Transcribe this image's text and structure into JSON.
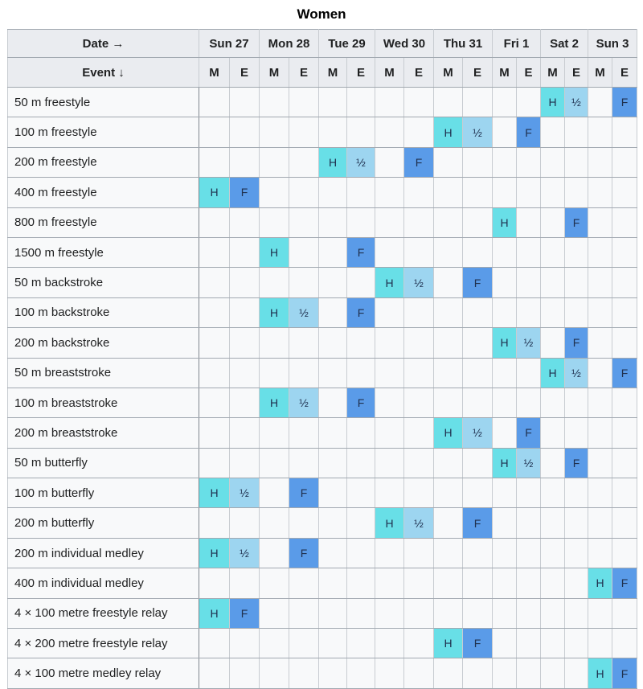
{
  "title": "Women",
  "table": {
    "date_label": "Date →",
    "event_label": "Event ↓",
    "days": [
      "Sun 27",
      "Mon 28",
      "Tue 29",
      "Wed 30",
      "Thu 31",
      "Fri 1",
      "Sat 2",
      "Sun 3"
    ],
    "sessions": [
      "M",
      "E"
    ],
    "marks": {
      "H": {
        "label": "H",
        "name": "heats",
        "bg": "#68dfe7"
      },
      "half": {
        "label": "½",
        "name": "semifinal",
        "bg": "#9dd5f0"
      },
      "F": {
        "label": "F",
        "name": "final",
        "bg": "#5a9be8"
      }
    },
    "colors": {
      "header_bg": "#eaecf0",
      "cell_bg": "#f8f9fa",
      "border": "#a2a9b1",
      "border_day": "#81878f",
      "border_light": "#c8ccd1",
      "text": "#202122",
      "mark_text": "#20314f"
    },
    "rows": [
      {
        "event": "50 m freestyle",
        "cells": [
          "",
          "",
          "",
          "",
          "",
          "",
          "",
          "",
          "",
          "",
          "",
          "",
          "H",
          "half",
          "",
          "F"
        ]
      },
      {
        "event": "100 m freestyle",
        "cells": [
          "",
          "",
          "",
          "",
          "",
          "",
          "",
          "",
          "H",
          "half",
          "",
          "F",
          "",
          "",
          "",
          ""
        ]
      },
      {
        "event": "200 m freestyle",
        "cells": [
          "",
          "",
          "",
          "",
          "H",
          "half",
          "",
          "F",
          "",
          "",
          "",
          "",
          "",
          "",
          "",
          ""
        ]
      },
      {
        "event": "400 m freestyle",
        "cells": [
          "H",
          "F",
          "",
          "",
          "",
          "",
          "",
          "",
          "",
          "",
          "",
          "",
          "",
          "",
          "",
          ""
        ]
      },
      {
        "event": "800 m freestyle",
        "cells": [
          "",
          "",
          "",
          "",
          "",
          "",
          "",
          "",
          "",
          "",
          "H",
          "",
          "",
          "F",
          "",
          ""
        ]
      },
      {
        "event": "1500 m freestyle",
        "cells": [
          "",
          "",
          "H",
          "",
          "",
          "F",
          "",
          "",
          "",
          "",
          "",
          "",
          "",
          "",
          "",
          ""
        ]
      },
      {
        "event": "50 m backstroke",
        "cells": [
          "",
          "",
          "",
          "",
          "",
          "",
          "H",
          "half",
          "",
          "F",
          "",
          "",
          "",
          "",
          "",
          ""
        ]
      },
      {
        "event": "100 m backstroke",
        "cells": [
          "",
          "",
          "H",
          "half",
          "",
          "F",
          "",
          "",
          "",
          "",
          "",
          "",
          "",
          "",
          "",
          ""
        ]
      },
      {
        "event": "200 m backstroke",
        "cells": [
          "",
          "",
          "",
          "",
          "",
          "",
          "",
          "",
          "",
          "",
          "H",
          "half",
          "",
          "F",
          "",
          ""
        ]
      },
      {
        "event": "50 m breaststroke",
        "cells": [
          "",
          "",
          "",
          "",
          "",
          "",
          "",
          "",
          "",
          "",
          "",
          "",
          "H",
          "half",
          "",
          "F"
        ]
      },
      {
        "event": "100 m breaststroke",
        "cells": [
          "",
          "",
          "H",
          "half",
          "",
          "F",
          "",
          "",
          "",
          "",
          "",
          "",
          "",
          "",
          "",
          ""
        ]
      },
      {
        "event": "200 m breaststroke",
        "cells": [
          "",
          "",
          "",
          "",
          "",
          "",
          "",
          "",
          "H",
          "half",
          "",
          "F",
          "",
          "",
          "",
          ""
        ]
      },
      {
        "event": "50 m butterfly",
        "cells": [
          "",
          "",
          "",
          "",
          "",
          "",
          "",
          "",
          "",
          "",
          "H",
          "half",
          "",
          "F",
          "",
          ""
        ]
      },
      {
        "event": "100 m butterfly",
        "cells": [
          "H",
          "half",
          "",
          "F",
          "",
          "",
          "",
          "",
          "",
          "",
          "",
          "",
          "",
          "",
          "",
          ""
        ]
      },
      {
        "event": "200 m butterfly",
        "cells": [
          "",
          "",
          "",
          "",
          "",
          "",
          "H",
          "half",
          "",
          "F",
          "",
          "",
          "",
          "",
          "",
          ""
        ]
      },
      {
        "event": "200 m individual medley",
        "cells": [
          "H",
          "half",
          "",
          "F",
          "",
          "",
          "",
          "",
          "",
          "",
          "",
          "",
          "",
          "",
          "",
          ""
        ]
      },
      {
        "event": "400 m individual medley",
        "cells": [
          "",
          "",
          "",
          "",
          "",
          "",
          "",
          "",
          "",
          "",
          "",
          "",
          "",
          "",
          "H",
          "F"
        ]
      },
      {
        "event": "4 × 100 metre freestyle relay",
        "cells": [
          "H",
          "F",
          "",
          "",
          "",
          "",
          "",
          "",
          "",
          "",
          "",
          "",
          "",
          "",
          "",
          ""
        ]
      },
      {
        "event": "4 × 200 metre freestyle relay",
        "cells": [
          "",
          "",
          "",
          "",
          "",
          "",
          "",
          "",
          "H",
          "F",
          "",
          "",
          "",
          "",
          "",
          ""
        ]
      },
      {
        "event": "4 × 100 metre medley relay",
        "cells": [
          "",
          "",
          "",
          "",
          "",
          "",
          "",
          "",
          "",
          "",
          "",
          "",
          "",
          "",
          "H",
          "F"
        ]
      }
    ]
  }
}
